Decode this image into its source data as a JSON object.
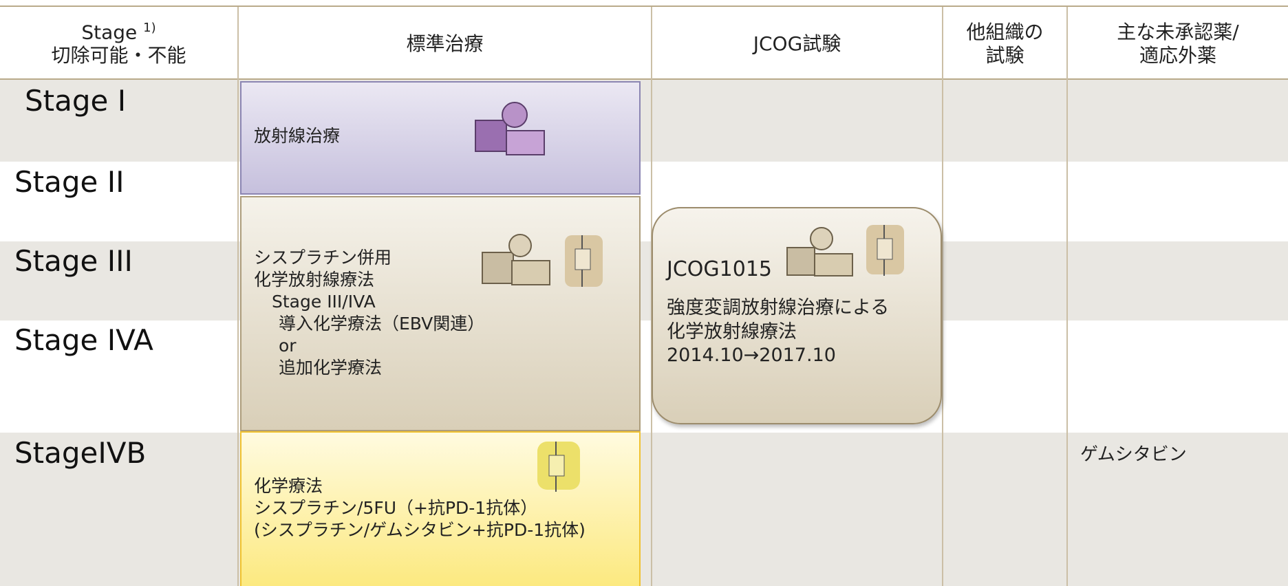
{
  "header": {
    "columns": [
      {
        "label": "Stage",
        "note": "1)",
        "sub": "切除可能・不能"
      },
      {
        "lines": [
          "標準治療"
        ]
      },
      {
        "lines": [
          "JCOG試験"
        ]
      },
      {
        "lines": [
          "他組織の",
          "試験"
        ]
      },
      {
        "lines": [
          "主な未承認薬/",
          "適応外薬"
        ]
      }
    ]
  },
  "stages": [
    "Stage I",
    "Stage II",
    "Stage III",
    "Stage IVA",
    "StageIVB"
  ],
  "standard": [
    {
      "lines": [
        "放射線治療"
      ]
    },
    {
      "lines": [
        "シスプラチン併用",
        "化学放射線療法",
        "Stage III/IVA",
        "導入化学療法（EBV関連）",
        "or",
        "追加化学療法"
      ]
    },
    {
      "lines": [
        "化学療法",
        "シスプラチン/5FU（+抗PD-1抗体）",
        "(シスプラチン/ゲムシタビン+抗PD-1抗体)"
      ]
    }
  ],
  "jcog": {
    "title": "JCOG1015",
    "lines": [
      "強度変調放射線治療による",
      "化学放射線療法",
      "2014.10→2017.10"
    ]
  },
  "unapproved": [
    "ゲムシタビン"
  ]
}
